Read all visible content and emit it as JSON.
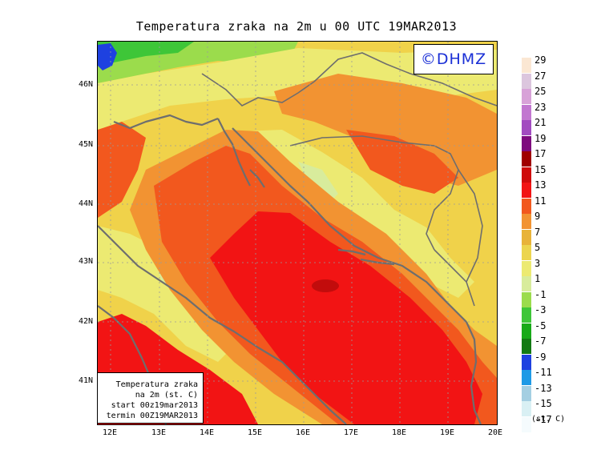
{
  "title": "Temperatura zraka na 2m u 00 UTC 19MAR2013",
  "watermark": "©DHMZ",
  "info_box": {
    "line1": "Temperatura zraka",
    "line2": "na 2m (st. C)",
    "line3": "start 00z19mar2013",
    "line4": "termin 00Z19MAR2013"
  },
  "axes": {
    "lat_labels": [
      "46N",
      "45N",
      "44N",
      "43N",
      "42N",
      "41N"
    ],
    "lon_labels": [
      "12E",
      "13E",
      "14E",
      "15E",
      "16E",
      "17E",
      "18E",
      "19E",
      "20E"
    ]
  },
  "legend": {
    "labels": [
      "29",
      "27",
      "25",
      "23",
      "21",
      "19",
      "17",
      "15",
      "13",
      "11",
      "9",
      "7",
      "5",
      "3",
      "1",
      "-1",
      "-3",
      "-5",
      "-7",
      "-9",
      "-11",
      "-13",
      "-15",
      "-17"
    ],
    "colors": [
      "#fbe7d3",
      "#dcc6de",
      "#d8a2d8",
      "#c277d0",
      "#a24bc0",
      "#7e0a7e",
      "#a00000",
      "#cf0b0b",
      "#f21414",
      "#f2581e",
      "#f29332",
      "#e8b339",
      "#ecd54e",
      "#ecea72",
      "#d8ec9c",
      "#9bdc4c",
      "#3ec638",
      "#18aa18",
      "#137a13",
      "#1e41e0",
      "#1e9ae6",
      "#a4cfe2",
      "#d9f0f4",
      "#f5fbfd"
    ],
    "unit": "(st. C)"
  },
  "map_colors": {
    "land_base": "#f0d24a",
    "warm_orange": "#f29332",
    "hot_orange": "#f2581e",
    "red": "#f21414",
    "dark_red": "#a00000",
    "pale_yellow": "#ecea72",
    "pale_green": "#d8ec9c",
    "green": "#9bdc4c",
    "dark_green": "#3ec638",
    "blue": "#1e41e0",
    "coast": "#6e6e6e"
  }
}
